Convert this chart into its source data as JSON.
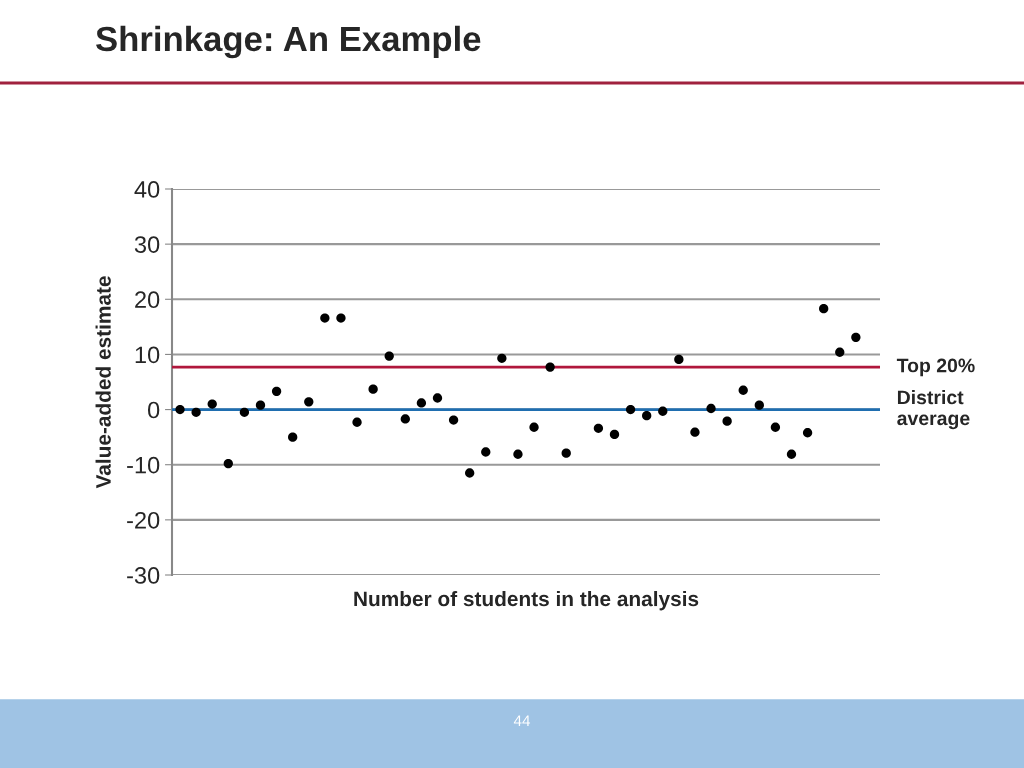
{
  "chart_data": {
    "type": "scatter",
    "title": "Shrinkage: An Example",
    "xlabel": "Number of students in the analysis",
    "ylabel": "Value-added estimate",
    "categories": [
      null,
      null,
      null,
      null,
      null,
      null,
      null,
      null,
      null,
      null,
      null,
      null,
      null,
      null,
      null,
      null,
      null,
      null,
      null,
      null,
      null,
      null,
      null,
      null,
      null,
      null,
      null,
      null,
      null,
      null,
      null,
      null,
      null,
      null,
      null,
      null,
      null,
      null,
      null,
      null,
      null,
      null,
      null,
      null
    ],
    "series": [
      {
        "color": "#000000",
        "values": [
          0,
          -0.5,
          1,
          -9.8,
          -0.5,
          0.8,
          3.3,
          -5,
          1.4,
          16.6,
          16.6,
          -2.3,
          3.7,
          9.7,
          -1.7,
          1.2,
          2.1,
          -1.9,
          -11.5,
          -7.7,
          9.3,
          -8.1,
          -3.2,
          7.7,
          -7.9,
          null,
          -3.4,
          -4.5,
          0,
          -1.1,
          -0.3,
          9.1,
          -4.1,
          0.2,
          -2.1,
          3.5,
          0.8,
          -3.2,
          -8.1,
          -4.2,
          18.3,
          10.4,
          13.1,
          null
        ]
      }
    ],
    "ylim": [
      -30,
      40
    ],
    "yticks": [
      -30,
      -20,
      -10,
      0,
      10,
      20,
      30,
      40
    ],
    "grid": "y",
    "marker": "circle",
    "ref_lines": [
      {
        "axis": "y",
        "value": 7.7,
        "label": "Top 20%",
        "color": "#b0173c"
      },
      {
        "axis": "y",
        "value": 0,
        "label": "District average",
        "color": "#1f6eb0"
      }
    ],
    "annotations": [
      "44"
    ]
  }
}
